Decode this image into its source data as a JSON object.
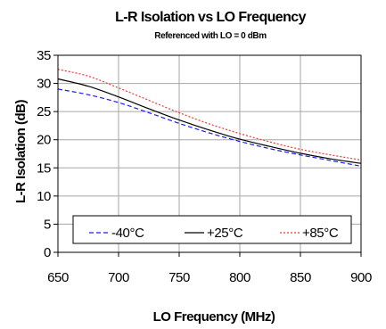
{
  "chart_data": {
    "type": "line",
    "title": "L-R Isolation vs LO Frequency",
    "subtitle": "Referenced with LO = 0 dBm",
    "xlabel": "LO Frequency (MHz)",
    "ylabel": "L-R Isolation (dB)",
    "xlim": [
      650,
      900
    ],
    "ylim": [
      0,
      35
    ],
    "xticks": [
      650,
      700,
      750,
      800,
      850,
      900
    ],
    "yticks": [
      0,
      5,
      10,
      15,
      20,
      25,
      30,
      35
    ],
    "xtick_labels": [
      "650",
      "700",
      "750",
      "800",
      "850",
      "900"
    ],
    "ytick_labels": [
      "0",
      "5",
      "10",
      "15",
      "20",
      "25",
      "30",
      "35"
    ],
    "grid": true,
    "legend_position": "bottom-inside",
    "x": [
      650,
      675,
      700,
      725,
      750,
      775,
      800,
      825,
      850,
      875,
      900
    ],
    "series": [
      {
        "name": "-40°C",
        "style": "dashed",
        "color": "#1a1aff",
        "values": [
          29.0,
          28.0,
          26.6,
          24.8,
          22.9,
          21.2,
          19.7,
          18.4,
          17.3,
          16.3,
          15.3
        ]
      },
      {
        "name": "+25°C",
        "style": "solid",
        "color": "#000000",
        "values": [
          30.8,
          29.5,
          27.6,
          25.5,
          23.5,
          21.7,
          20.1,
          18.8,
          17.6,
          16.6,
          15.8
        ]
      },
      {
        "name": "+85°C",
        "style": "dotted",
        "color": "#ff3333",
        "values": [
          32.5,
          31.3,
          29.2,
          27.0,
          24.8,
          22.8,
          21.1,
          19.6,
          18.3,
          17.3,
          16.4
        ]
      }
    ]
  }
}
